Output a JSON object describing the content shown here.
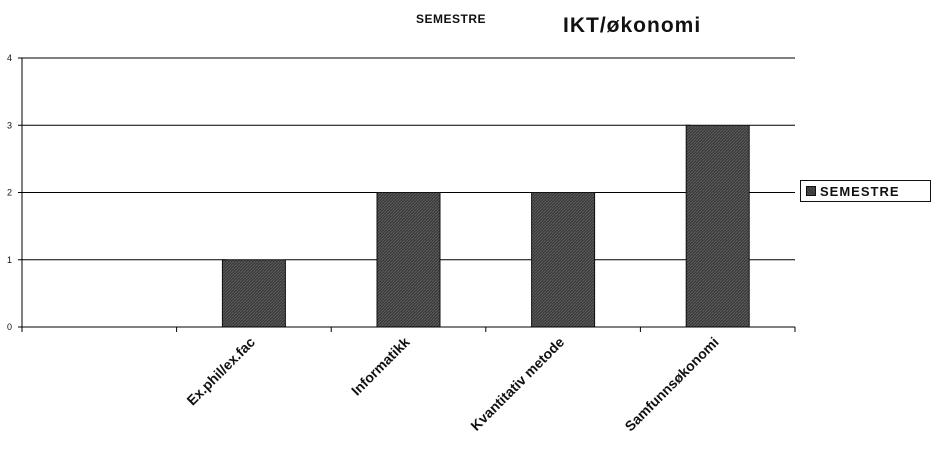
{
  "chart_data": {
    "type": "bar",
    "title": "IKT/økonomi",
    "subtitle": "SEMESTRE",
    "categories": [
      "",
      "Ex.phil/ex.fac",
      "Informatikk",
      "Kvantitativ metode",
      "Samfunnsøkonomi"
    ],
    "series": [
      {
        "name": "SEMESTRE",
        "values": [
          0,
          1,
          2,
          2,
          3
        ]
      }
    ],
    "y_ticks": [
      "0",
      "1",
      "2",
      "3",
      "4"
    ],
    "ylim": [
      0,
      4
    ],
    "grid": true,
    "legend": "right",
    "colors": {
      "bar": "#3b3b3b",
      "grid": "#000000",
      "axis": "#000000"
    }
  }
}
